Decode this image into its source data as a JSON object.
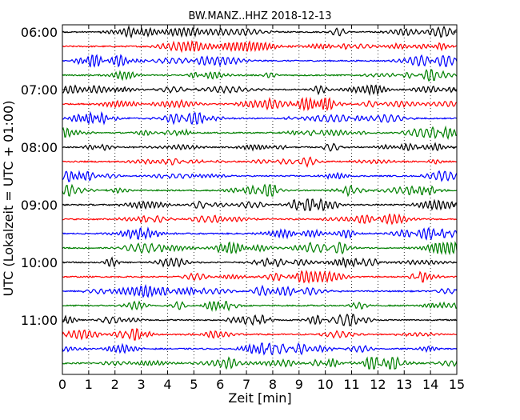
{
  "chart_data": {
    "type": "line",
    "title": "BW.MANZ..HHZ 2018-12-13",
    "xlabel": "Zeit  [min]",
    "ylabel": "UTC (Lokalzeit = UTC + 01:00)",
    "xlim": [
      0,
      15
    ],
    "x_ticks": [
      "0",
      "1",
      "2",
      "3",
      "4",
      "5",
      "6",
      "7",
      "8",
      "9",
      "10",
      "11",
      "12",
      "13",
      "14",
      "15"
    ],
    "y_tick_labels": [
      "06:00",
      "07:00",
      "08:00",
      "09:00",
      "10:00",
      "11:00"
    ],
    "trace_interval_min": 15,
    "trace_starts": [
      "06:00",
      "06:15",
      "06:30",
      "06:45",
      "07:00",
      "07:15",
      "07:30",
      "07:45",
      "08:00",
      "08:15",
      "08:30",
      "08:45",
      "09:00",
      "09:15",
      "09:30",
      "09:45",
      "10:00",
      "10:15",
      "10:30",
      "10:45",
      "11:00",
      "11:15",
      "11:30",
      "11:45"
    ],
    "trace_color_cycle": [
      "#000000",
      "#ff0000",
      "#0000ff",
      "#008000"
    ],
    "grid": "vertical dotted at each minute",
    "legend": "none"
  }
}
